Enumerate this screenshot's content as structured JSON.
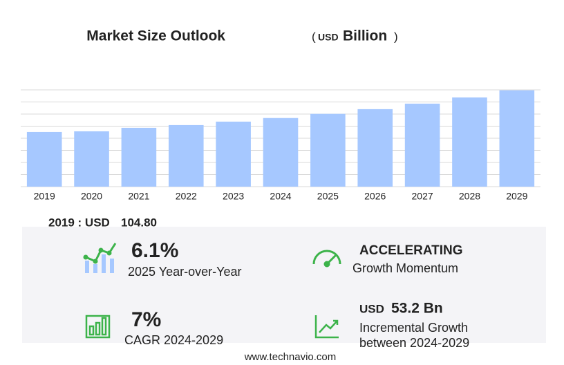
{
  "chart_data": {
    "type": "bar",
    "title": "Market Size Outlook",
    "unit_open": "(",
    "unit_currency": "USD",
    "unit_name": "Billion",
    "unit_close": ")",
    "categories": [
      "2019",
      "2020",
      "2021",
      "2022",
      "2023",
      "2024",
      "2025",
      "2026",
      "2027",
      "2028",
      "2029"
    ],
    "values": [
      104.8,
      106.1,
      112.8,
      118.1,
      124.7,
      131.6,
      139.6,
      148.6,
      159.2,
      171.1,
      184.8
    ],
    "color": "#a6c8ff",
    "ylim": [
      0,
      185.6
    ],
    "yticks": [
      0,
      23.2,
      46.4,
      69.6,
      92.8,
      116,
      139.2,
      162.4,
      185.6
    ],
    "grid": true
  },
  "base": {
    "label": "2019 : USD",
    "value": "104.80"
  },
  "stats": {
    "yoy": {
      "value": "6.1%",
      "label": "2025 Year-over-Year"
    },
    "momentum": {
      "value": "ACCELERATING",
      "label": "Growth Momentum"
    },
    "cagr": {
      "value": "7%",
      "label": "CAGR 2024-2029"
    },
    "incremental": {
      "currency": "USD",
      "value": "53.2 Bn",
      "label_1": "Incremental Growth",
      "label_2": "between 2024-2029"
    }
  },
  "footer": "www.technavio.com"
}
